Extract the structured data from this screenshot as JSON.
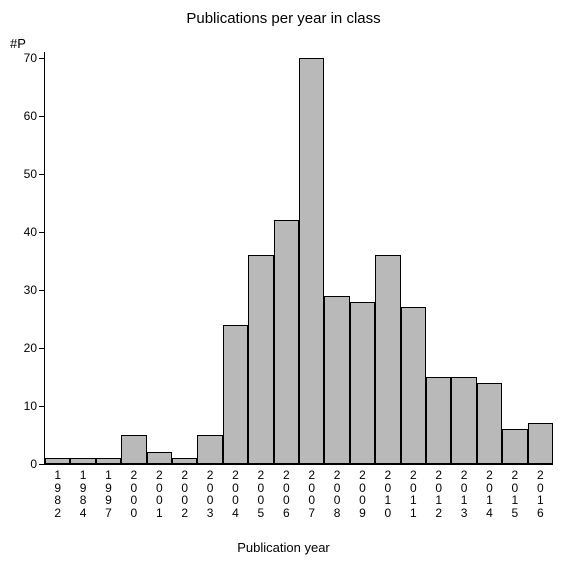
{
  "chart": {
    "type": "bar",
    "title": "Publications per year in class",
    "title_fontsize": 15,
    "ylabel": "#P",
    "xlabel": "Publication year",
    "label_fontsize": 13,
    "tick_fontsize": 12,
    "categories": [
      "1982",
      "1984",
      "1997",
      "2000",
      "2001",
      "2002",
      "2003",
      "2004",
      "2005",
      "2006",
      "2007",
      "2008",
      "2009",
      "2010",
      "2011",
      "2012",
      "2013",
      "2014",
      "2015",
      "2016"
    ],
    "values": [
      1,
      1,
      1,
      5,
      2,
      1,
      5,
      24,
      36,
      42,
      70,
      29,
      28,
      36,
      27,
      15,
      15,
      14,
      6,
      7
    ],
    "bar_color": "#b9b9b9",
    "border_color": "#000000",
    "background_color": "#ffffff",
    "ylim": [
      0,
      71
    ],
    "yticks": [
      0,
      10,
      20,
      30,
      40,
      50,
      60,
      70
    ],
    "bar_width_ratio": 1.0
  }
}
